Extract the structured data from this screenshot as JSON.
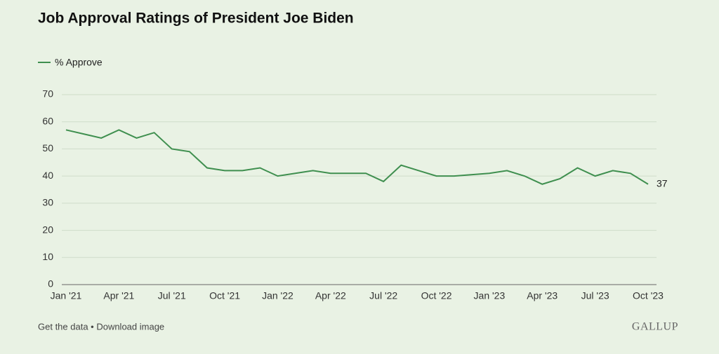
{
  "chart_data": {
    "type": "line",
    "title": "Job Approval Ratings of President Joe Biden",
    "x": [
      "2021-01",
      "2021-03",
      "2021-04",
      "2021-05",
      "2021-06",
      "2021-07",
      "2021-08",
      "2021-09",
      "2021-10",
      "2021-11",
      "2021-12",
      "2022-01",
      "2022-02",
      "2022-03",
      "2022-04",
      "2022-05",
      "2022-06",
      "2022-07",
      "2022-08",
      "2022-09",
      "2022-10",
      "2022-11",
      "2023-01",
      "2023-02",
      "2023-03",
      "2023-04",
      "2023-05",
      "2023-06",
      "2023-07",
      "2023-08",
      "2023-09",
      "2023-10"
    ],
    "series": [
      {
        "name": "% Approve",
        "color": "#3f8f4f",
        "values": [
          57,
          54,
          57,
          54,
          56,
          50,
          49,
          43,
          42,
          42,
          43,
          40,
          41,
          42,
          41,
          41,
          41,
          38,
          44,
          42,
          40,
          40,
          41,
          42,
          40,
          37,
          39,
          43,
          40,
          42,
          41,
          37
        ]
      }
    ],
    "xlim": [
      "2021-01",
      "2023-10"
    ],
    "xticks": [
      {
        "value": "2021-01",
        "label": "Jan '21"
      },
      {
        "value": "2021-04",
        "label": "Apr '21"
      },
      {
        "value": "2021-07",
        "label": "Jul '21"
      },
      {
        "value": "2021-10",
        "label": "Oct '21"
      },
      {
        "value": "2022-01",
        "label": "Jan '22"
      },
      {
        "value": "2022-04",
        "label": "Apr '22"
      },
      {
        "value": "2022-07",
        "label": "Jul '22"
      },
      {
        "value": "2022-10",
        "label": "Oct '22"
      },
      {
        "value": "2023-01",
        "label": "Jan '23"
      },
      {
        "value": "2023-04",
        "label": "Apr '23"
      },
      {
        "value": "2023-07",
        "label": "Jul '23"
      },
      {
        "value": "2023-10",
        "label": "Oct '23"
      }
    ],
    "ylim": [
      0,
      70
    ],
    "yticks": [
      0,
      10,
      20,
      30,
      40,
      50,
      60,
      70
    ],
    "grid": true,
    "legend": "top-left"
  },
  "footer": {
    "links": "Get the data • Download image",
    "brand": "GALLUP"
  }
}
